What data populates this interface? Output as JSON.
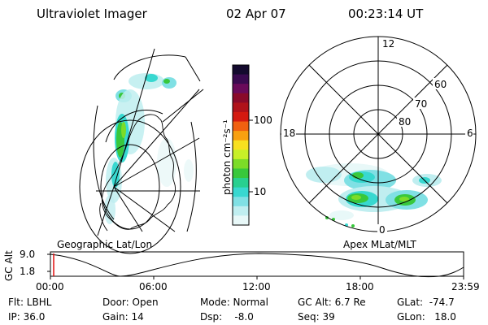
{
  "header": {
    "instrument": "Ultraviolet Imager",
    "date": "02 Apr 07",
    "time": "00:23:14 UT"
  },
  "colorbar": {
    "label": "photon cm⁻²s⁻¹",
    "ticks": [
      "100",
      "10"
    ],
    "colors": [
      "#140a2e",
      "#3a0a50",
      "#6a0a5a",
      "#8a0a2a",
      "#b0121a",
      "#d41a10",
      "#f06010",
      "#f8a010",
      "#f8e020",
      "#c8f028",
      "#7cdc28",
      "#38c83c",
      "#28d090",
      "#38d8d0",
      "#80e0e4",
      "#c0eef0",
      "#e8f8f8"
    ]
  },
  "left_panel": {
    "label": "Geographic Lat/Lon"
  },
  "right_panel": {
    "label": "Apex MLat/MLT",
    "mlt_labels": {
      "top": "12",
      "left": "18",
      "right": "6",
      "bottom": "0"
    },
    "lat_labels": [
      "60",
      "70",
      "80"
    ]
  },
  "altitude_plot": {
    "ylabel": "GC Alt",
    "yticks": [
      "9.0",
      "1.8"
    ],
    "xticks": [
      "00:00",
      "06:00",
      "12:00",
      "18:00",
      "23:59"
    ],
    "marker_color": "#e01010"
  },
  "info": {
    "flt": "Flt: LBHL",
    "ip": "IP: 36.0",
    "door": "Door: Open",
    "gain": "Gain: 14",
    "mode": "Mode: Normal",
    "dsp": "Dsp:    -8.0",
    "gc_alt": "GC Alt: 6.7 Re",
    "seq": "Seq: 39",
    "glat": "GLat:  -74.7",
    "glon": "GLon:   18.0"
  }
}
